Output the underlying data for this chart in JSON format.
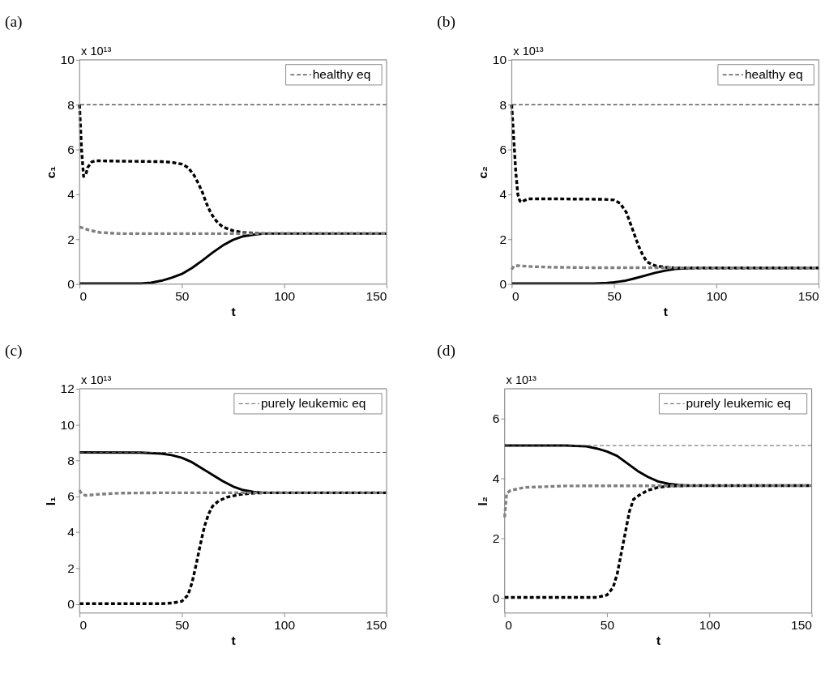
{
  "chart_data": [
    {
      "type": "line",
      "title": "(a)",
      "xlabel": "t",
      "ylabel": "c₁",
      "annotations": [
        "x 10¹³"
      ],
      "xlim": [
        0,
        150
      ],
      "xticks": [
        0,
        50,
        100,
        150
      ],
      "ylim": [
        0,
        10
      ],
      "yticks": [
        0,
        2,
        4,
        6,
        8,
        10
      ],
      "grid": false,
      "legend": "top right",
      "marker": "none",
      "ref_lines": [
        {
          "axis": "y",
          "value": 8,
          "label": "healthy eq",
          "color": "#000000",
          "line_style": "dashed"
        }
      ],
      "series": [
        {
          "color": "#000000",
          "line_style": "solid",
          "x": [
            0,
            30,
            35,
            40,
            45,
            50,
            55,
            60,
            65,
            70,
            75,
            80,
            85,
            90,
            150
          ],
          "values": [
            0.03,
            0.03,
            0.06,
            0.15,
            0.28,
            0.45,
            0.72,
            1.05,
            1.4,
            1.72,
            1.97,
            2.13,
            2.2,
            2.25,
            2.25
          ]
        },
        {
          "color": "#000000",
          "line_style": "dashed",
          "x": [
            0,
            1,
            2,
            3,
            4,
            6,
            8,
            20,
            40,
            45,
            50,
            53,
            56,
            58,
            60,
            62,
            64,
            66,
            68,
            70,
            75,
            80,
            85,
            90,
            150
          ],
          "values": [
            8,
            6,
            4.8,
            4.85,
            5.2,
            5.45,
            5.5,
            5.48,
            5.46,
            5.43,
            5.35,
            5.2,
            4.85,
            4.5,
            4.1,
            3.6,
            3.2,
            2.9,
            2.7,
            2.55,
            2.38,
            2.3,
            2.27,
            2.25,
            2.25
          ]
        },
        {
          "color": "#808080",
          "line_style": "dashed",
          "x": [
            0,
            5,
            10,
            20,
            150
          ],
          "values": [
            2.55,
            2.4,
            2.3,
            2.25,
            2.25
          ]
        }
      ]
    },
    {
      "type": "line",
      "title": "(b)",
      "xlabel": "t",
      "ylabel": "c₂",
      "annotations": [
        "x 10¹³"
      ],
      "xlim": [
        0,
        150
      ],
      "xticks": [
        0,
        50,
        100,
        150
      ],
      "ylim": [
        0,
        10
      ],
      "yticks": [
        0,
        2,
        4,
        6,
        8,
        10
      ],
      "grid": false,
      "legend": "top right",
      "marker": "none",
      "ref_lines": [
        {
          "axis": "y",
          "value": 8,
          "label": "healthy eq",
          "color": "#000000",
          "line_style": "dashed"
        }
      ],
      "series": [
        {
          "color": "#000000",
          "line_style": "solid",
          "x": [
            0,
            40,
            45,
            50,
            55,
            60,
            65,
            70,
            75,
            80,
            85,
            90,
            150
          ],
          "values": [
            0.03,
            0.03,
            0.04,
            0.08,
            0.14,
            0.25,
            0.37,
            0.5,
            0.6,
            0.67,
            0.7,
            0.72,
            0.72
          ]
        },
        {
          "color": "#000000",
          "line_style": "dashed",
          "x": [
            0,
            1,
            2,
            3,
            4,
            5,
            6,
            8,
            20,
            45,
            50,
            53,
            56,
            58,
            60,
            62,
            64,
            66,
            68,
            70,
            75,
            80,
            90,
            150
          ],
          "values": [
            8,
            6.5,
            5,
            4,
            3.7,
            3.65,
            3.72,
            3.8,
            3.8,
            3.78,
            3.75,
            3.6,
            3.2,
            2.7,
            2.2,
            1.7,
            1.3,
            1.0,
            0.9,
            0.82,
            0.75,
            0.72,
            0.72,
            0.72
          ]
        },
        {
          "color": "#808080",
          "line_style": "dashed",
          "x": [
            0,
            1,
            3,
            10,
            20,
            40,
            150
          ],
          "values": [
            0.65,
            0.8,
            0.82,
            0.78,
            0.75,
            0.73,
            0.72
          ]
        }
      ]
    },
    {
      "type": "line",
      "title": "(c)",
      "xlabel": "t",
      "ylabel": "l₁",
      "annotations": [
        "x 10¹³"
      ],
      "xlim": [
        0,
        150
      ],
      "xticks": [
        0,
        50,
        100,
        150
      ],
      "ylim": [
        -0.5,
        12
      ],
      "yticks": [
        0,
        2,
        4,
        6,
        8,
        10,
        12
      ],
      "grid": false,
      "legend": "top right",
      "marker": "none",
      "ref_lines": [
        {
          "axis": "y",
          "value": 8.45,
          "label": "purely leukemic eq",
          "color": "#555555",
          "line_style": "dashed"
        }
      ],
      "series": [
        {
          "color": "#000000",
          "line_style": "solid",
          "x": [
            0,
            30,
            40,
            45,
            50,
            55,
            60,
            65,
            70,
            75,
            80,
            85,
            90,
            150
          ],
          "values": [
            8.45,
            8.44,
            8.38,
            8.3,
            8.15,
            7.9,
            7.55,
            7.2,
            6.85,
            6.55,
            6.35,
            6.25,
            6.2,
            6.2
          ]
        },
        {
          "color": "#000000",
          "line_style": "dashed",
          "x": [
            0,
            40,
            45,
            50,
            53,
            55,
            57,
            59,
            61,
            63,
            65,
            68,
            72,
            78,
            85,
            90,
            150
          ],
          "values": [
            0.02,
            0.02,
            0.05,
            0.15,
            0.5,
            1.2,
            2.2,
            3.3,
            4.3,
            5.0,
            5.45,
            5.75,
            5.95,
            6.1,
            6.18,
            6.2,
            6.2
          ]
        },
        {
          "color": "#808080",
          "line_style": "dashed",
          "x": [
            0,
            1,
            3,
            10,
            20,
            40,
            150
          ],
          "values": [
            6.35,
            6.15,
            6.05,
            6.12,
            6.18,
            6.2,
            6.2
          ]
        }
      ]
    },
    {
      "type": "line",
      "title": "(d)",
      "xlabel": "t",
      "ylabel": "l₂",
      "annotations": [
        "x 10¹³"
      ],
      "xlim": [
        0,
        150
      ],
      "xticks": [
        0,
        50,
        100,
        150
      ],
      "ylim": [
        -0.5,
        7
      ],
      "yticks": [
        0,
        2,
        4,
        6
      ],
      "grid": false,
      "legend": "top right",
      "marker": "none",
      "ref_lines": [
        {
          "axis": "y",
          "value": 5.1,
          "label": "purely leukemic eq",
          "color": "#555555",
          "line_style": "dashed"
        }
      ],
      "series": [
        {
          "color": "#000000",
          "line_style": "solid",
          "x": [
            0,
            30,
            40,
            45,
            50,
            55,
            60,
            65,
            70,
            75,
            80,
            85,
            90,
            150
          ],
          "values": [
            5.1,
            5.1,
            5.07,
            5.0,
            4.9,
            4.75,
            4.5,
            4.25,
            4.05,
            3.9,
            3.82,
            3.78,
            3.76,
            3.76
          ]
        },
        {
          "color": "#000000",
          "line_style": "dashed",
          "x": [
            0,
            45,
            50,
            53,
            55,
            57,
            59,
            61,
            63,
            66,
            70,
            75,
            80,
            90,
            150
          ],
          "values": [
            0.02,
            0.02,
            0.1,
            0.35,
            0.8,
            1.5,
            2.2,
            2.9,
            3.3,
            3.45,
            3.6,
            3.7,
            3.74,
            3.76,
            3.76
          ]
        },
        {
          "color": "#808080",
          "line_style": "dashed",
          "x": [
            0,
            1,
            3,
            10,
            30,
            150
          ],
          "values": [
            2.7,
            3.5,
            3.6,
            3.7,
            3.75,
            3.76
          ]
        }
      ]
    }
  ]
}
